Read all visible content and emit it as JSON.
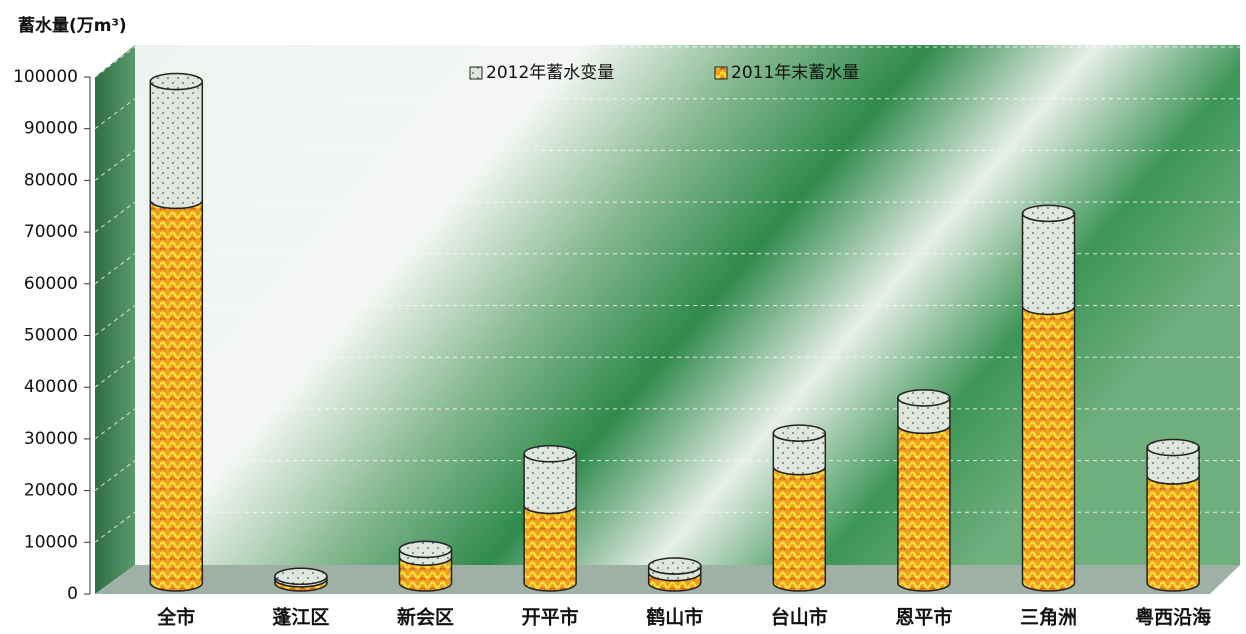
{
  "chart_data": {
    "type": "bar",
    "stacked": true,
    "title": null,
    "y_label": "蓄水量(万m³)",
    "categories": [
      "全市",
      "蓬江区",
      "新会区",
      "开平市",
      "鹤山市",
      "台山市",
      "恩平市",
      "三角洲",
      "粤西沿海"
    ],
    "series": [
      {
        "name": "2011年末蓄水量",
        "color": "#f0a020",
        "values": [
          74000,
          800,
          5000,
          15000,
          2000,
          22500,
          30500,
          53500,
          20700
        ]
      },
      {
        "name": "2012年蓄水变量",
        "color": "#dfe6dc",
        "values": [
          23000,
          500,
          1500,
          10000,
          1300,
          6500,
          5300,
          18000,
          5500
        ]
      }
    ],
    "ylim": [
      0,
      100000
    ],
    "yticks": [
      0,
      10000,
      20000,
      30000,
      40000,
      50000,
      60000,
      70000,
      80000,
      90000,
      100000
    ],
    "grid": true,
    "legend": "top"
  }
}
